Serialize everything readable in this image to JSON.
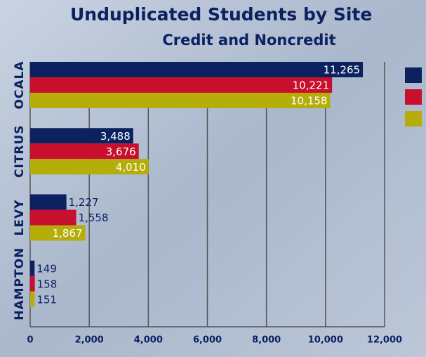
{
  "chart_data": {
    "type": "bar",
    "orientation": "horizontal",
    "title": "Unduplicated Students by Site",
    "subtitle": "Credit and Noncredit",
    "categories": [
      "OCALA",
      "CITRUS",
      "LEVY",
      "HAMPTON"
    ],
    "series": [
      {
        "color": "#0b2160",
        "values": [
          11265,
          3488,
          1227,
          149
        ],
        "value_labels": [
          "11,265",
          "3,488",
          "1,227",
          "149"
        ]
      },
      {
        "color": "#c8102e",
        "values": [
          10221,
          3676,
          1558,
          158
        ],
        "value_labels": [
          "10,221",
          "3,676",
          "1,558",
          "158"
        ]
      },
      {
        "color": "#b5ad0a",
        "values": [
          10158,
          4010,
          1867,
          151
        ],
        "value_labels": [
          "10,158",
          "4,010",
          "1,867",
          "151"
        ]
      }
    ],
    "xlim": [
      0,
      12000
    ],
    "xticks": [
      0,
      {
        "value": 2000,
        "label": "2,000"
      },
      {
        "value": 4000,
        "label": "4,000"
      },
      {
        "value": 6000,
        "label": "6,000"
      },
      {
        "value": 8000,
        "label": "8,000"
      },
      {
        "value": 10000,
        "label": "10,000"
      },
      {
        "value": 12000,
        "label": "12,000"
      }
    ],
    "grid": true
  }
}
